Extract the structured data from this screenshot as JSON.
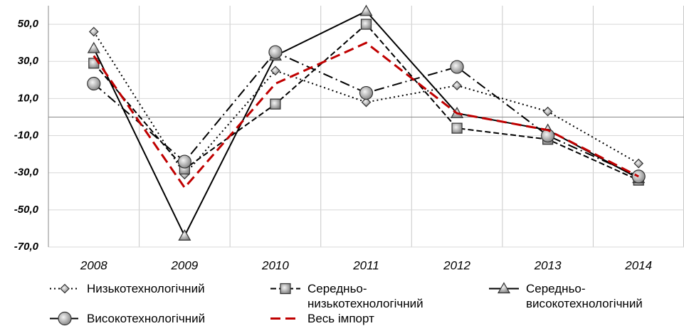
{
  "chart_data": {
    "type": "line",
    "categories": [
      "2008",
      "2009",
      "2010",
      "2011",
      "2012",
      "2013",
      "2014"
    ],
    "ylim": [
      -70,
      60
    ],
    "yticks": [
      {
        "value": -70,
        "label": "-70,0"
      },
      {
        "value": -50,
        "label": "-50,0"
      },
      {
        "value": -30,
        "label": "-30,0"
      },
      {
        "value": -10,
        "label": "-10,0"
      },
      {
        "value": 10,
        "label": "10,0"
      },
      {
        "value": 30,
        "label": "30,0"
      },
      {
        "value": 50,
        "label": "50,0"
      }
    ],
    "grid": true,
    "series": [
      {
        "name": "Низькотехнологічний",
        "color": "#000000",
        "line_style": "dotted",
        "marker": "diamond",
        "values": [
          46,
          -31,
          25,
          8,
          17,
          3,
          -25
        ]
      },
      {
        "name": "Середньо-низькотехнологічний",
        "color": "#000000",
        "line_style": "dashed",
        "marker": "square",
        "values": [
          29,
          -28,
          7,
          50,
          -6,
          -12,
          -34
        ]
      },
      {
        "name": "Середньо-високотехнологічний",
        "color": "#000000",
        "line_style": "solid",
        "marker": "triangle",
        "values": [
          37,
          -64,
          33,
          57,
          2,
          -7,
          -33
        ]
      },
      {
        "name": "Високотехнологічний",
        "color": "#000000",
        "line_style": "dashdot",
        "marker": "circle",
        "values": [
          18,
          -24,
          35,
          13,
          27,
          -10,
          -32
        ]
      },
      {
        "name": "Весь імпорт",
        "color": "#c00000",
        "line_style": "longdash",
        "marker": "none",
        "values": [
          33,
          -38,
          18,
          40,
          2,
          -7,
          -32
        ]
      }
    ]
  }
}
